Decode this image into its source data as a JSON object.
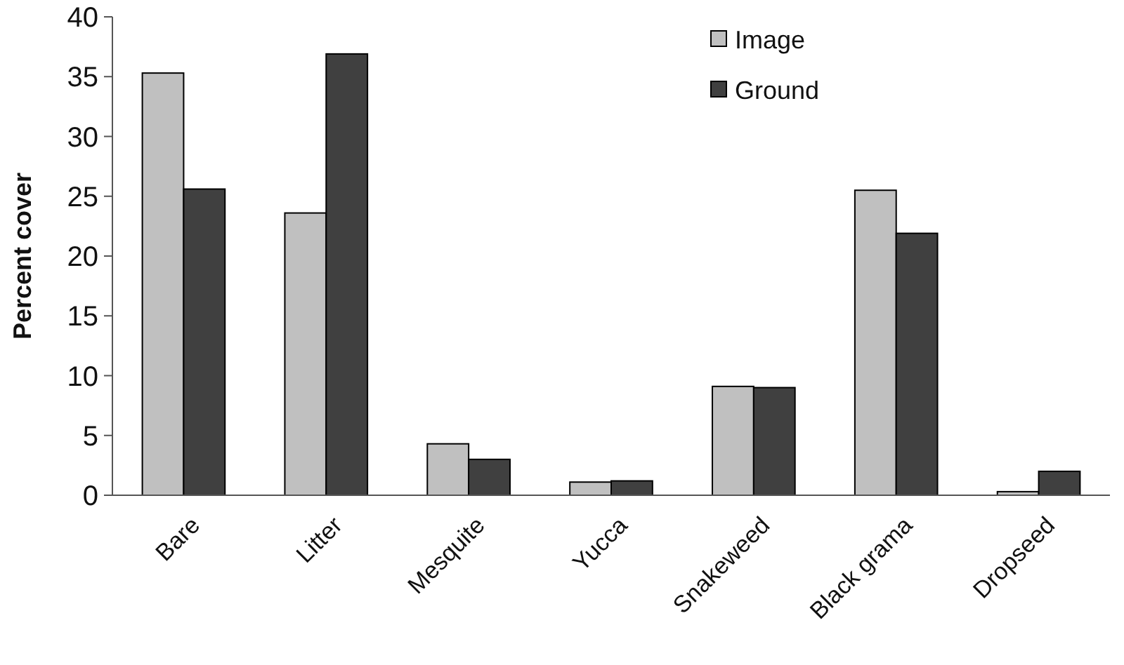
{
  "chart_data": {
    "type": "bar",
    "ylabel": "Percent cover",
    "categories": [
      "Bare",
      "Litter",
      "Mesquite",
      "Yucca",
      "Snakeweed",
      "Black grama",
      "Dropseed"
    ],
    "series": [
      {
        "name": "Image",
        "color": "#c0c0c0",
        "values": [
          35.3,
          23.6,
          4.3,
          1.1,
          9.1,
          25.5,
          0.3
        ]
      },
      {
        "name": "Ground",
        "color": "#404040",
        "values": [
          25.6,
          36.9,
          3.0,
          1.2,
          9.0,
          21.9,
          2.0
        ]
      }
    ],
    "ylim": [
      0,
      40
    ],
    "yticks": [
      0,
      5,
      10,
      15,
      20,
      25,
      30,
      35,
      40
    ],
    "grid": false,
    "legend": "top right"
  }
}
